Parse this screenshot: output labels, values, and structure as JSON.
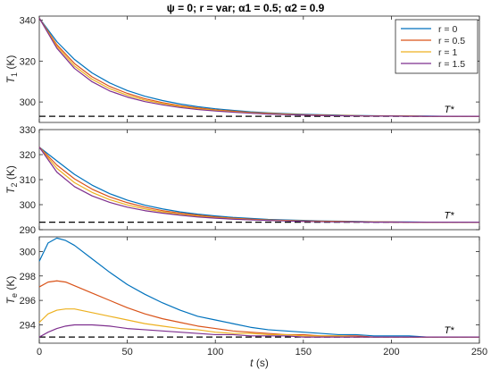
{
  "chart_data": {
    "type": "line",
    "title": "ψ = 0; r = var; α1 = 0.5; α2 = 0.9",
    "xlabel": "t (s)",
    "xlim": [
      0,
      250
    ],
    "x_ticks": [
      0,
      50,
      100,
      150,
      200,
      250
    ],
    "grid": false,
    "legend_position": "top-right",
    "colors": {
      "r0": "#0072BD",
      "r05": "#D95319",
      "r1": "#EDB120",
      "r15": "#7E2F8E",
      "reference": "#000000"
    },
    "legend": [
      "r = 0",
      "r = 0.5",
      "r = 1",
      "r = 1.5"
    ],
    "legend_colors": [
      "#0072BD",
      "#D95319",
      "#EDB120",
      "#7E2F8E"
    ],
    "panels": [
      {
        "ylabel": "T1 (K)",
        "ylim": [
          290,
          342
        ],
        "yticks": [
          300,
          320,
          340
        ],
        "reference": {
          "label": "T*",
          "y": 293
        },
        "series": [
          {
            "name": "r = 0",
            "x": [
              0,
              10,
              20,
              30,
              40,
              50,
              60,
              70,
              80,
              90,
              100,
              110,
              120,
              130,
              140,
              150,
              160,
              170,
              180,
              190,
              200,
              210,
              220,
              230,
              240,
              250
            ],
            "y": [
              341,
              329.5,
              320.8,
              314.2,
              309.3,
              305.6,
              302.8,
              300.7,
              299.0,
              297.7,
              296.7,
              295.9,
              295.2,
              294.7,
              294.3,
              294.0,
              293.8,
              293.6,
              293.4,
              293.3,
              293.2,
              293.1,
              293.1,
              293.0,
              293.0,
              293.0
            ]
          },
          {
            "name": "r = 0.5",
            "x": [
              0,
              10,
              20,
              30,
              40,
              50,
              60,
              70,
              80,
              90,
              100,
              110,
              120,
              130,
              140,
              150,
              160,
              170,
              180,
              190,
              200,
              210,
              220,
              230,
              240,
              250
            ],
            "y": [
              341,
              328.0,
              318.8,
              312.3,
              307.6,
              304.2,
              301.6,
              299.7,
              298.2,
              297.1,
              296.2,
              295.5,
              294.9,
              294.5,
              294.1,
              293.8,
              293.6,
              293.4,
              293.3,
              293.2,
              293.1,
              293.1,
              293.0,
              293.0,
              293.0,
              293.0
            ]
          },
          {
            "name": "r = 1",
            "x": [
              0,
              10,
              20,
              30,
              40,
              50,
              60,
              70,
              80,
              90,
              100,
              110,
              120,
              130,
              140,
              150,
              160,
              170,
              180,
              190,
              200,
              210,
              220,
              230,
              240,
              250
            ],
            "y": [
              341,
              327.2,
              317.6,
              311.1,
              306.5,
              303.3,
              300.9,
              299.2,
              297.8,
              296.7,
              295.9,
              295.2,
              294.7,
              294.3,
              294.0,
              293.7,
              293.5,
              293.4,
              293.3,
              293.2,
              293.1,
              293.1,
              293.0,
              293.0,
              293.0,
              293.0
            ]
          },
          {
            "name": "r = 1.5",
            "x": [
              0,
              10,
              20,
              30,
              40,
              50,
              60,
              70,
              80,
              90,
              100,
              110,
              120,
              130,
              140,
              150,
              160,
              170,
              180,
              190,
              200,
              210,
              220,
              230,
              240,
              250
            ],
            "y": [
              341,
              326.3,
              316.4,
              309.9,
              305.4,
              302.4,
              300.2,
              298.6,
              297.3,
              296.3,
              295.6,
              295.0,
              294.5,
              294.1,
              293.8,
              293.6,
              293.4,
              293.3,
              293.2,
              293.1,
              293.1,
              293.0,
              293.0,
              293.0,
              293.0,
              293.0
            ]
          }
        ]
      },
      {
        "ylabel": "T2 (K)",
        "ylim": [
          290,
          330
        ],
        "yticks": [
          290,
          300,
          310,
          320,
          330
        ],
        "reference": {
          "label": "T*",
          "y": 293
        },
        "series": [
          {
            "name": "r = 0",
            "x": [
              0,
              10,
              20,
              30,
              40,
              50,
              60,
              70,
              80,
              90,
              100,
              110,
              120,
              130,
              140,
              150,
              160,
              170,
              180,
              190,
              200,
              210,
              220,
              230,
              240,
              250
            ],
            "y": [
              323,
              317.5,
              312.1,
              307.8,
              304.4,
              301.8,
              299.8,
              298.3,
              297.1,
              296.2,
              295.5,
              294.9,
              294.5,
              294.1,
              293.9,
              293.7,
              293.5,
              293.4,
              293.3,
              293.2,
              293.1,
              293.1,
              293.0,
              293.0,
              293.0,
              293.0
            ]
          },
          {
            "name": "r = 0.5",
            "x": [
              0,
              10,
              20,
              30,
              40,
              50,
              60,
              70,
              80,
              90,
              100,
              110,
              120,
              130,
              140,
              150,
              160,
              170,
              180,
              190,
              200,
              210,
              220,
              230,
              240,
              250
            ],
            "y": [
              323,
              315.8,
              310.3,
              306.2,
              303.1,
              300.8,
              299.0,
              297.6,
              296.6,
              295.8,
              295.1,
              294.6,
              294.2,
              293.9,
              293.7,
              293.5,
              293.4,
              293.3,
              293.2,
              293.1,
              293.1,
              293.0,
              293.0,
              293.0,
              293.0,
              293.0
            ]
          },
          {
            "name": "r = 1",
            "x": [
              0,
              10,
              20,
              30,
              40,
              50,
              60,
              70,
              80,
              90,
              100,
              110,
              120,
              130,
              140,
              150,
              160,
              170,
              180,
              190,
              200,
              210,
              220,
              230,
              240,
              250
            ],
            "y": [
              323,
              314.5,
              308.8,
              304.9,
              302.0,
              299.9,
              298.3,
              297.1,
              296.1,
              295.4,
              294.8,
              294.4,
              294.0,
              293.8,
              293.6,
              293.4,
              293.3,
              293.2,
              293.1,
              293.1,
              293.0,
              293.0,
              293.0,
              293.0,
              293.0,
              293.0
            ]
          },
          {
            "name": "r = 1.5",
            "x": [
              0,
              10,
              20,
              30,
              40,
              50,
              60,
              70,
              80,
              90,
              100,
              110,
              120,
              130,
              140,
              150,
              160,
              170,
              180,
              190,
              200,
              210,
              220,
              230,
              240,
              250
            ],
            "y": [
              323,
              313.0,
              307.2,
              303.5,
              300.9,
              299.0,
              297.6,
              296.6,
              295.8,
              295.1,
              294.6,
              294.2,
              293.9,
              293.7,
              293.5,
              293.3,
              293.2,
              293.1,
              293.1,
              293.0,
              293.0,
              293.0,
              293.0,
              293.0,
              293.0,
              293.0
            ]
          }
        ]
      },
      {
        "ylabel": "Te (K)",
        "ylim": [
          292.5,
          301.2
        ],
        "yticks": [
          294,
          296,
          298,
          300
        ],
        "reference": {
          "label": "T*",
          "y": 293
        },
        "series": [
          {
            "name": "r = 0",
            "x": [
              0,
              5,
              10,
              15,
              20,
              30,
              40,
              50,
              60,
              70,
              80,
              90,
              100,
              110,
              120,
              130,
              140,
              150,
              160,
              170,
              180,
              190,
              200,
              210,
              220,
              230,
              240,
              250
            ],
            "y": [
              299.2,
              300.7,
              301.1,
              300.9,
              300.5,
              299.4,
              298.3,
              297.3,
              296.5,
              295.8,
              295.2,
              294.7,
              294.4,
              294.1,
              293.8,
              293.6,
              293.5,
              293.4,
              293.3,
              293.2,
              293.2,
              293.1,
              293.1,
              293.1,
              293.0,
              293.0,
              293.0,
              293.0
            ]
          },
          {
            "name": "r = 0.5",
            "x": [
              0,
              5,
              10,
              15,
              20,
              30,
              40,
              50,
              60,
              70,
              80,
              90,
              100,
              110,
              120,
              130,
              140,
              150,
              160,
              170,
              180,
              190,
              200,
              210,
              220,
              230,
              240,
              250
            ],
            "y": [
              297.1,
              297.5,
              297.6,
              297.5,
              297.2,
              296.6,
              296.0,
              295.4,
              294.9,
              294.5,
              294.2,
              293.9,
              293.7,
              293.5,
              293.4,
              293.3,
              293.2,
              293.2,
              293.1,
              293.1,
              293.1,
              293.0,
              293.0,
              293.0,
              293.0,
              293.0,
              293.0,
              293.0
            ]
          },
          {
            "name": "r = 1",
            "x": [
              0,
              5,
              10,
              15,
              20,
              30,
              40,
              50,
              60,
              70,
              80,
              90,
              100,
              110,
              120,
              130,
              140,
              150,
              160,
              170,
              180,
              190,
              200,
              210,
              220,
              230,
              240,
              250
            ],
            "y": [
              294.2,
              294.9,
              295.2,
              295.3,
              295.3,
              295.0,
              294.7,
              294.4,
              294.1,
              293.9,
              293.7,
              293.6,
              293.4,
              293.3,
              293.3,
              293.2,
              293.2,
              293.1,
              293.1,
              293.1,
              293.0,
              293.0,
              293.0,
              293.0,
              293.0,
              293.0,
              293.0,
              293.0
            ]
          },
          {
            "name": "r = 1.5",
            "x": [
              0,
              5,
              10,
              15,
              20,
              30,
              40,
              50,
              60,
              70,
              80,
              90,
              100,
              110,
              120,
              130,
              140,
              150,
              160,
              170,
              180,
              190,
              200,
              210,
              220,
              230,
              240,
              250
            ],
            "y": [
              293.0,
              293.4,
              293.7,
              293.9,
              294.0,
              294.0,
              293.9,
              293.7,
              293.6,
              293.5,
              293.4,
              293.3,
              293.2,
              293.2,
              293.1,
              293.1,
              293.1,
              293.0,
              293.0,
              293.0,
              293.0,
              293.0,
              293.0,
              293.0,
              293.0,
              293.0,
              293.0,
              293.0
            ]
          }
        ]
      }
    ]
  }
}
